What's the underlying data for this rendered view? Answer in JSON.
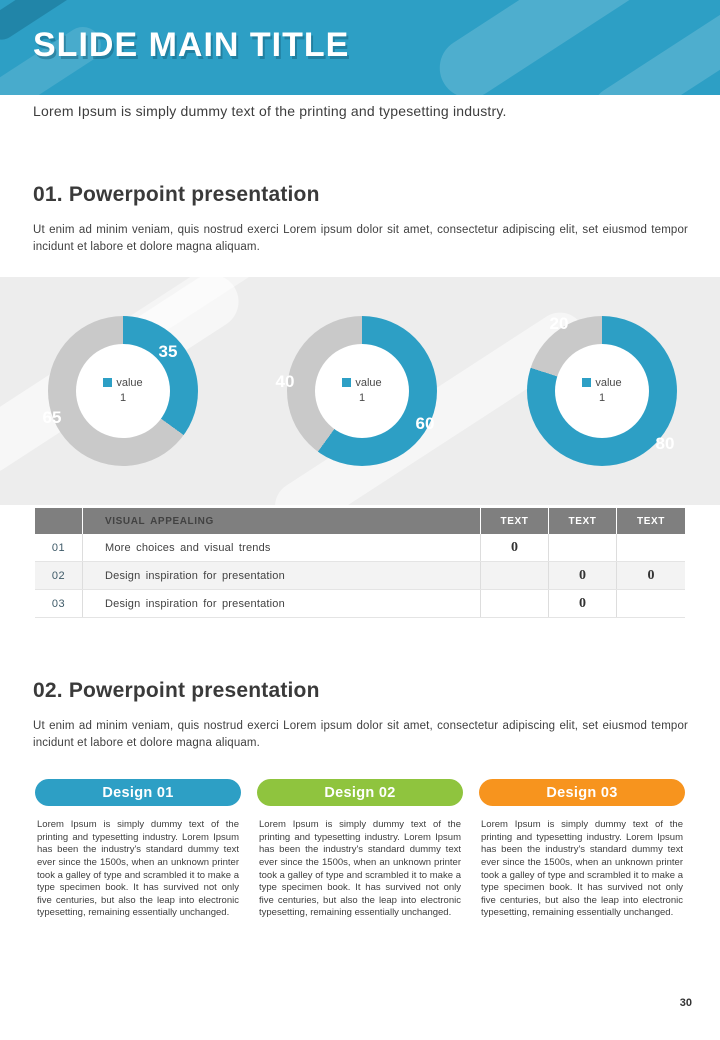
{
  "page": {
    "title": "SLIDE MAIN TITLE",
    "subtitle": "Lorem Ipsum is simply dummy text of the printing and typesetting industry.",
    "page_number": "30"
  },
  "section1": {
    "heading": "01. Powerpoint presentation",
    "body": "Ut enim ad minim veniam, quis nostrud exerci  Lorem ipsum dolor sit amet, consectetur adipiscing elit, set eiusmod tempor incidunt et labore et dolore magna aliquam."
  },
  "section2": {
    "heading": "02. Powerpoint presentation",
    "body": "Ut enim ad minim veniam, quis nostrud exerci  Lorem ipsum dolor sit amet, consectetur adipiscing elit, set eiusmod tempor incidunt et labore et dolore magna aliquam."
  },
  "chart_data": [
    {
      "type": "pie",
      "legend": "value 1",
      "values": [
        35,
        65
      ],
      "colors": [
        "#2D9FC5",
        "#C9C9C9"
      ],
      "note": "donut; blue segment 35 starting at 12 o'clock clockwise, gray 65"
    },
    {
      "type": "pie",
      "legend": "value 1",
      "values": [
        60,
        40
      ],
      "colors": [
        "#2D9FC5",
        "#C9C9C9"
      ],
      "note": "donut; blue segment 60 starting at 12 o'clock clockwise, gray 40"
    },
    {
      "type": "pie",
      "legend": "value 1",
      "values": [
        80,
        20
      ],
      "colors": [
        "#2D9FC5",
        "#C9C9C9"
      ],
      "note": "donut; blue segment 80 starting at 12 o'clock clockwise, gray 20"
    }
  ],
  "table": {
    "headers": [
      "",
      "VISUAL APPEALING",
      "TEXT",
      "TEXT",
      "TEXT"
    ],
    "rows": [
      {
        "num": "01",
        "label": "More choices and visual trends",
        "t1": "0",
        "t2": "",
        "t3": ""
      },
      {
        "num": "02",
        "label": "Design inspiration for presentation",
        "t1": "",
        "t2": "0",
        "t3": "0"
      },
      {
        "num": "03",
        "label": "Design inspiration for presentation",
        "t1": "",
        "t2": "0",
        "t3": ""
      }
    ]
  },
  "cards": [
    {
      "title": "Design 01",
      "color": "#2D9FC5",
      "body": "Lorem Ipsum is simply dummy text of the printing and typesetting industry. Lorem Ipsum has been the industry's standard dummy text ever since the 1500s, when an unknown printer took a galley of type and scrambled it to make a type specimen book. It has survived not only five centuries, but also the leap into electronic typesetting, remaining essentially unchanged."
    },
    {
      "title": "Design 02",
      "color": "#8FC43E",
      "body": "Lorem Ipsum is simply dummy text of the printing and typesetting industry. Lorem Ipsum has been the industry's standard dummy text ever since the 1500s, when an unknown printer took a galley of type and scrambled it to make a type specimen book. It has survived not only five centuries, but also the leap into electronic typesetting, remaining essentially unchanged."
    },
    {
      "title": "Design 03",
      "color": "#F7941E",
      "body": "Lorem Ipsum is simply dummy text of the printing and typesetting industry. Lorem Ipsum has been the industry's standard dummy text ever since the 1500s, when an unknown printer took a galley of type and scrambled it to make a type specimen book. It has survived not only five centuries, but also the leap into electronic typesetting, remaining essentially unchanged."
    }
  ]
}
